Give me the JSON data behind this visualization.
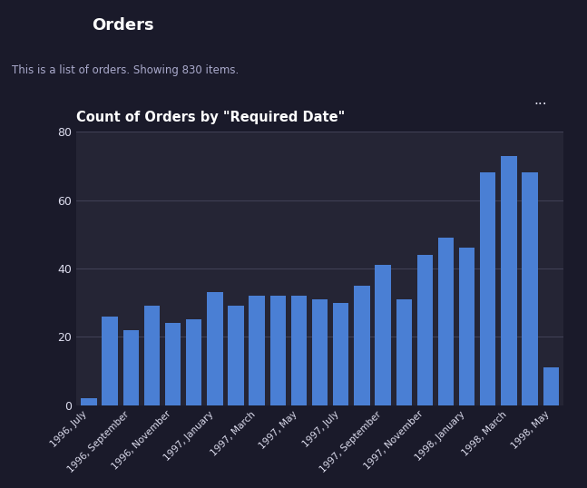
{
  "title": "Count of Orders by \"Required Date\"",
  "nav_bg": "#1a1a2a",
  "subtitle_bg": "#252535",
  "chart_panel_bg": "#252535",
  "outer_bg": "#1a1a2a",
  "bar_color": "#4a7fd4",
  "text_color": "#ffffff",
  "subtitle_text_color": "#aaaacc",
  "grid_color": "#404055",
  "axis_text_color": "#ddddee",
  "bar_values": [
    2,
    26,
    22,
    29,
    24,
    25,
    33,
    29,
    32,
    32,
    32,
    31,
    30,
    35,
    41,
    31,
    44,
    49,
    46,
    68,
    73,
    68,
    11
  ],
  "tick_positions": [
    0,
    2,
    4,
    6,
    8,
    10,
    12,
    14,
    16,
    18,
    20,
    22
  ],
  "tick_labels": [
    "1996, July",
    "1996, September",
    "1996, November",
    "1997, January",
    "1997, March",
    "1997, May",
    "1997, July",
    "1997, September",
    "1997, November",
    "1998, January",
    "1998, March",
    "1998, May"
  ],
  "ylim": [
    0,
    80
  ],
  "yticks": [
    0,
    20,
    40,
    60,
    80
  ],
  "subtitle": "This is a list of orders. Showing 830 items.",
  "nav_title": "Orders",
  "figsize": [
    6.47,
    5.38
  ],
  "dpi": 100,
  "panel_border_color": "#cccccc"
}
